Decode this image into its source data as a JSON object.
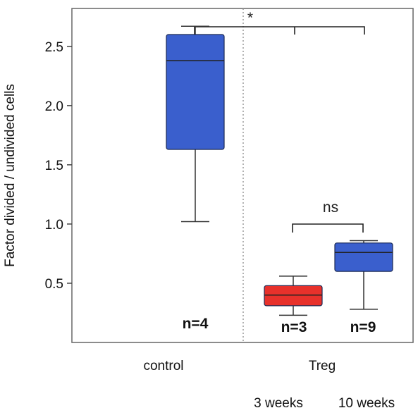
{
  "chart_data": {
    "type": "box",
    "ylabel": "Factor divided / undivided cells",
    "ylim": [
      0.0,
      2.82
    ],
    "yticks": [
      0.5,
      1.0,
      1.5,
      2.0,
      2.5
    ],
    "ytick_labels": [
      "0.5",
      "1.0",
      "1.5",
      "2.0",
      "2.5"
    ],
    "category_labels": [
      "control",
      "Treg"
    ],
    "sublabels": [
      "3 weeks",
      "10 weeks"
    ],
    "grid": false,
    "boxes": [
      {
        "group": "control",
        "color": "#3a5fcd",
        "min": 1.02,
        "q1": 1.63,
        "median": 2.38,
        "q3": 2.6,
        "max": 2.67,
        "n_label": "n=4"
      },
      {
        "group": "Treg 3 weeks",
        "color": "#e8312b",
        "min": 0.23,
        "q1": 0.31,
        "median": 0.4,
        "q3": 0.48,
        "max": 0.56,
        "n_label": "n=3"
      },
      {
        "group": "Treg 10 weeks",
        "color": "#3a5fcd",
        "min": 0.28,
        "q1": 0.6,
        "median": 0.76,
        "q3": 0.84,
        "max": 0.86,
        "n_label": "n=9"
      }
    ],
    "annotations": [
      {
        "text": "*",
        "between": [
          "control",
          "Treg"
        ]
      },
      {
        "text": "ns",
        "between": [
          "Treg 3 weeks",
          "Treg 10 weeks"
        ]
      }
    ]
  }
}
